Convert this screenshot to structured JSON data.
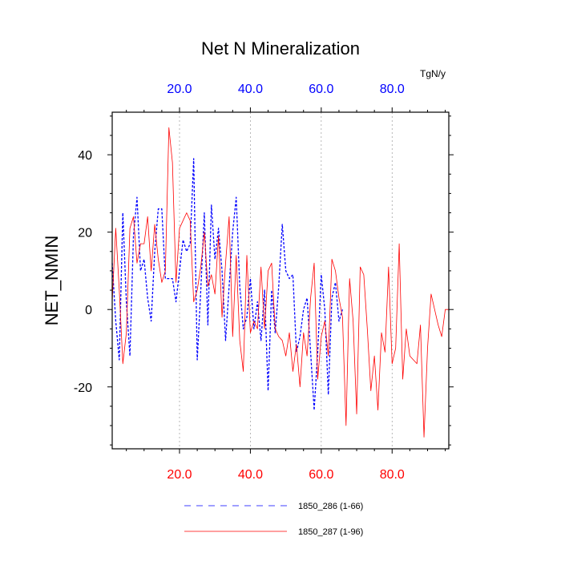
{
  "chart_data": {
    "type": "line",
    "title": "Net N Mineralization",
    "xlabel": "",
    "ylabel": "NET_NMIN",
    "units_label": "TgN/y",
    "xlim": [
      1,
      96
    ],
    "ylim": [
      -36,
      51
    ],
    "yticks": [
      -20,
      0,
      20,
      40
    ],
    "ytick_labels": [
      "-20",
      "0",
      "20",
      "40"
    ],
    "xticks_bottom": [
      20,
      40,
      60,
      80
    ],
    "xtick_labels_bottom": [
      "20.0",
      "40.0",
      "60.0",
      "80.0"
    ],
    "xticks_top": [
      20,
      40,
      60,
      80
    ],
    "xtick_labels_top": [
      "20.0",
      "40.0",
      "60.0",
      "80.0"
    ],
    "bottom_axis_color": "#ff0000",
    "top_axis_color": "#0000ff",
    "vertical_gridlines_at": [
      20,
      40,
      60,
      80
    ],
    "legend_position": "bottom",
    "series": [
      {
        "name": "1850_286 (1-66)",
        "label": "1850_286 (1-66)",
        "color": "#0000ff",
        "dash": "dashed",
        "x_start": 1,
        "values": [
          12,
          -3,
          -13,
          25,
          2,
          -12,
          19,
          29,
          10,
          13,
          3,
          -3,
          15,
          26,
          26,
          8,
          8,
          8,
          2,
          10,
          18,
          15,
          17,
          39,
          -13,
          5,
          25,
          -4,
          27,
          13,
          21,
          10,
          -8,
          6,
          20,
          29,
          6,
          -5,
          -2,
          8,
          -5,
          2,
          -8,
          5,
          -21,
          5,
          -6,
          6,
          22,
          10,
          8,
          9,
          -11,
          -7,
          0,
          3,
          -11,
          -26,
          -11,
          9,
          0,
          -22,
          3,
          7,
          -3,
          0
        ]
      },
      {
        "name": "1850_287 (1-96)",
        "label": "1850_287 (1-96)",
        "color": "#ff0000",
        "dash": "solid",
        "x_start": 1,
        "values": [
          2,
          21,
          5,
          -14,
          -6,
          21,
          24,
          12,
          17,
          17,
          24,
          10,
          22,
          13,
          7,
          10,
          47,
          38,
          7,
          21,
          23,
          25,
          23,
          2,
          5,
          11,
          20,
          6,
          9,
          4,
          19,
          -2,
          12,
          24,
          -7,
          14,
          -8,
          -16,
          14,
          -6,
          -3,
          -5,
          11,
          -5,
          10,
          12,
          -5,
          -7,
          -8,
          -12,
          -6,
          -16,
          -9,
          -20,
          -6,
          -12,
          3,
          12,
          -18,
          -7,
          -3,
          -12,
          13,
          10,
          3,
          -2,
          -30,
          8,
          -3,
          -27,
          11,
          9,
          -5,
          -21,
          -12,
          -26,
          -6,
          -11,
          11,
          -14,
          -10,
          17,
          -18,
          -5,
          -12,
          -13,
          -14,
          -4,
          -33,
          -10,
          4,
          0,
          -4,
          -7,
          0,
          0
        ]
      }
    ]
  }
}
